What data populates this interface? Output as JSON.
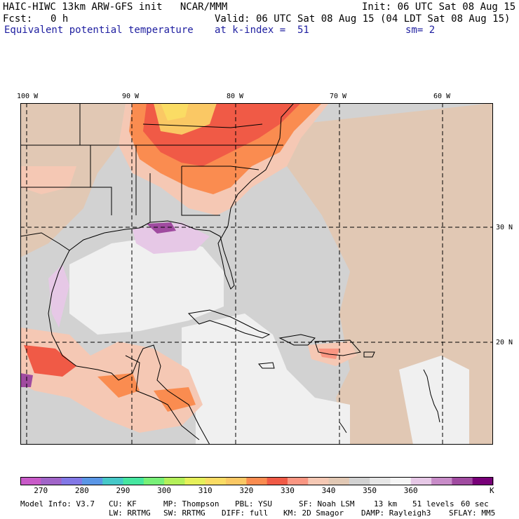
{
  "header": {
    "model_line": "HAIC-HIWC 13km ARW-GFS init   NCAR/MMM",
    "init_line": "Init: 06 UTC Sat 08 Aug 15",
    "fcst_label": "Fcst:",
    "fcst_value": "0 h",
    "valid_line": "Valid: 06 UTC Sat 08 Aug 15 (04 LDT Sat 08 Aug 15)",
    "field_name": "Equivalent potential temperature",
    "level_line": "at k-index =  51",
    "smoothing": "sm= 2"
  },
  "map": {
    "lon_labels": [
      "100 W",
      "90 W",
      "80 W",
      "70 W",
      "60 W"
    ],
    "lat_labels": [
      "30 N",
      "20 N"
    ]
  },
  "colorbar": {
    "unit": "K",
    "tick_labels": [
      "270",
      "280",
      "290",
      "300",
      "310",
      "320",
      "330",
      "340",
      "350",
      "360"
    ],
    "colors": [
      "#c85ac8",
      "#a064c8",
      "#8278e6",
      "#5a96e6",
      "#46c8c8",
      "#46e6a0",
      "#78f078",
      "#b4f05a",
      "#e6f05a",
      "#fadc64",
      "#fac864",
      "#fa8c50",
      "#f05a46",
      "#fa9682",
      "#f5c8b4",
      "#e1c8b4",
      "#d2d2d2",
      "#e6e6e6",
      "#f5f5f5",
      "#e6c8e6",
      "#c88cc8",
      "#a04ba0",
      "#780078"
    ]
  },
  "footer": {
    "line1": {
      "model_info": "Model Info: V3.7",
      "cu": "CU: KF",
      "mp": "MP: Thompson",
      "pbl": "PBL: YSU",
      "sf": "SF: Noah LSM",
      "res": "13 km",
      "levels": "51 levels",
      "dt": "60 sec"
    },
    "line2": {
      "lw": "LW: RRTMG",
      "sw": "SW: RRTMG",
      "diff": "DIFF: full",
      "km": "KM: 2D Smagor",
      "damp": "DAMP: Rayleigh3",
      "sflay": "SFLAY: MM5"
    }
  }
}
